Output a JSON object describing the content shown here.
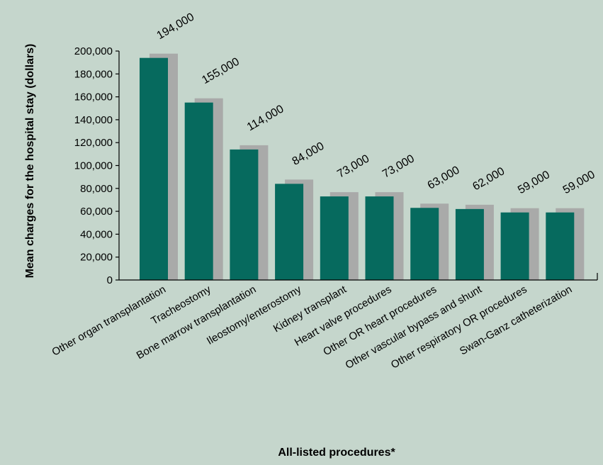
{
  "colors": {
    "background": "#c5d6cc",
    "bar": "#066a5e",
    "shadow": "#a9aaa9",
    "axis": "#000000"
  },
  "chart_data": {
    "type": "bar",
    "xlabel": "All-listed procedures*",
    "ylabel": "Mean charges for the hospital stay (dollars)",
    "ylim": [
      0,
      200000
    ],
    "yticks": [
      0,
      20000,
      40000,
      60000,
      80000,
      100000,
      120000,
      140000,
      160000,
      180000,
      200000
    ],
    "ytick_labels": [
      "0",
      "20,000",
      "40,000",
      "60,000",
      "80,000",
      "100,000",
      "120,000",
      "140,000",
      "160,000",
      "180,000",
      "200,000"
    ],
    "grid": false,
    "categories": [
      "Other organ transplantation",
      "Tracheostomy",
      "Bone marrow transplantation",
      "Ileostomy/enterostomy",
      "Kidney transplant",
      "Heart valve procedures",
      "Other OR heart procedures",
      "Other vascular bypass and shunt",
      "Other respiratory OR procedures",
      "Swan-Ganz catheterization"
    ],
    "values": [
      194000,
      155000,
      114000,
      84000,
      73000,
      73000,
      63000,
      62000,
      59000,
      59000
    ],
    "value_labels": [
      "194,000",
      "155,000",
      "114,000",
      "84,000",
      "73,000",
      "73,000",
      "63,000",
      "62,000",
      "59,000",
      "59,000"
    ]
  }
}
